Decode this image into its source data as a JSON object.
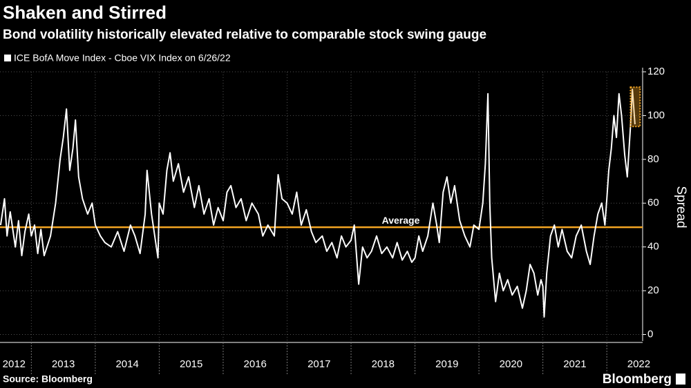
{
  "chart_data": {
    "type": "line",
    "title": "Shaken and Stirred",
    "subtitle": "Bond volatility historically elevated relative to comparable stock swing gauge",
    "y_label": "Spread",
    "source": "Source: Bloomberg",
    "brand": "Bloomberg",
    "grid": true,
    "xlim": [
      2012.51,
      2022.56
    ],
    "ylim": [
      -3,
      120
    ],
    "yticks": [
      0,
      20,
      40,
      60,
      80,
      100,
      120
    ],
    "xticks": [
      {
        "value": 2012.73,
        "label": "2012"
      },
      {
        "value": 2013.5,
        "label": "2013"
      },
      {
        "value": 2014.5,
        "label": "2014"
      },
      {
        "value": 2015.5,
        "label": "2015"
      },
      {
        "value": 2016.5,
        "label": "2016"
      },
      {
        "value": 2017.5,
        "label": "2017"
      },
      {
        "value": 2018.5,
        "label": "2018"
      },
      {
        "value": 2019.5,
        "label": "2019"
      },
      {
        "value": 2020.5,
        "label": "2020"
      },
      {
        "value": 2021.5,
        "label": "2021"
      },
      {
        "value": 2022.5,
        "label": "2022"
      }
    ],
    "average": {
      "value": 49,
      "label": "Average",
      "color": "#f5a623"
    },
    "highlight": {
      "xlim": [
        2022.37,
        2022.52
      ],
      "ylim": [
        95,
        113
      ],
      "color": "#f5a623"
    },
    "x": [
      2012.52,
      2012.58,
      2012.62,
      2012.67,
      2012.75,
      2012.8,
      2012.85,
      2012.9,
      2012.96,
      2013.0,
      2013.05,
      2013.1,
      2013.15,
      2013.2,
      2013.3,
      2013.38,
      2013.45,
      2013.5,
      2013.55,
      2013.6,
      2013.65,
      2013.69,
      2013.74,
      2013.8,
      2013.88,
      2013.95,
      2014.0,
      2014.08,
      2014.15,
      2014.25,
      2014.35,
      2014.45,
      2014.55,
      2014.62,
      2014.7,
      2014.78,
      2014.81,
      2014.88,
      2014.98,
      2015.0,
      2015.06,
      2015.12,
      2015.17,
      2015.22,
      2015.3,
      2015.38,
      2015.46,
      2015.55,
      2015.62,
      2015.7,
      2015.78,
      2015.85,
      2015.92,
      2016.0,
      2016.06,
      2016.12,
      2016.2,
      2016.28,
      2016.36,
      2016.45,
      2016.55,
      2016.62,
      2016.7,
      2016.8,
      2016.86,
      2016.92,
      2017.0,
      2017.08,
      2017.15,
      2017.22,
      2017.3,
      2017.38,
      2017.45,
      2017.55,
      2017.62,
      2017.7,
      2017.78,
      2017.85,
      2017.92,
      2018.0,
      2018.05,
      2018.12,
      2018.18,
      2018.25,
      2018.32,
      2018.4,
      2018.48,
      2018.56,
      2018.65,
      2018.72,
      2018.8,
      2018.88,
      2018.95,
      2019.0,
      2019.06,
      2019.12,
      2019.2,
      2019.28,
      2019.34,
      2019.38,
      2019.44,
      2019.5,
      2019.56,
      2019.62,
      2019.7,
      2019.78,
      2019.86,
      2019.92,
      2020.0,
      2020.06,
      2020.1,
      2020.14,
      2020.17,
      2020.2,
      2020.26,
      2020.32,
      2020.38,
      2020.45,
      2020.52,
      2020.6,
      2020.68,
      2020.74,
      2020.8,
      2020.86,
      2020.92,
      2020.97,
      2021.0,
      2021.02,
      2021.06,
      2021.12,
      2021.18,
      2021.24,
      2021.3,
      2021.38,
      2021.45,
      2021.52,
      2021.6,
      2021.68,
      2021.74,
      2021.8,
      2021.86,
      2021.92,
      2021.97,
      2022.0,
      2022.03,
      2022.07,
      2022.11,
      2022.15,
      2022.19,
      2022.23,
      2022.28,
      2022.32,
      2022.37,
      2022.4,
      2022.44
    ],
    "series": [
      {
        "name": "ICE BofA Move Index - Cboe VIX Index on 6/26/22",
        "color": "#ffffff",
        "values": [
          50,
          62,
          45,
          56,
          40,
          52,
          36,
          47,
          55,
          45,
          50,
          37,
          48,
          36,
          45,
          60,
          80,
          90,
          103,
          75,
          85,
          98,
          72,
          62,
          55,
          60,
          50,
          45,
          42,
          40,
          47,
          38,
          50,
          45,
          37,
          55,
          75,
          55,
          35,
          60,
          55,
          75,
          83,
          70,
          78,
          65,
          72,
          58,
          68,
          55,
          62,
          50,
          58,
          52,
          65,
          68,
          58,
          62,
          52,
          60,
          55,
          45,
          50,
          45,
          73,
          62,
          60,
          55,
          65,
          50,
          57,
          47,
          42,
          45,
          38,
          42,
          35,
          45,
          40,
          43,
          50,
          23,
          40,
          35,
          38,
          45,
          37,
          40,
          35,
          42,
          34,
          38,
          33,
          35,
          45,
          38,
          45,
          60,
          50,
          42,
          65,
          72,
          60,
          68,
          52,
          45,
          40,
          50,
          48,
          60,
          78,
          110,
          60,
          35,
          15,
          28,
          20,
          25,
          18,
          22,
          12,
          20,
          32,
          28,
          18,
          25,
          22,
          8,
          28,
          45,
          50,
          40,
          48,
          38,
          35,
          45,
          50,
          38,
          32,
          45,
          55,
          60,
          50,
          62,
          75,
          85,
          100,
          90,
          110,
          100,
          82,
          72,
          95,
          112,
          96
        ]
      }
    ]
  }
}
